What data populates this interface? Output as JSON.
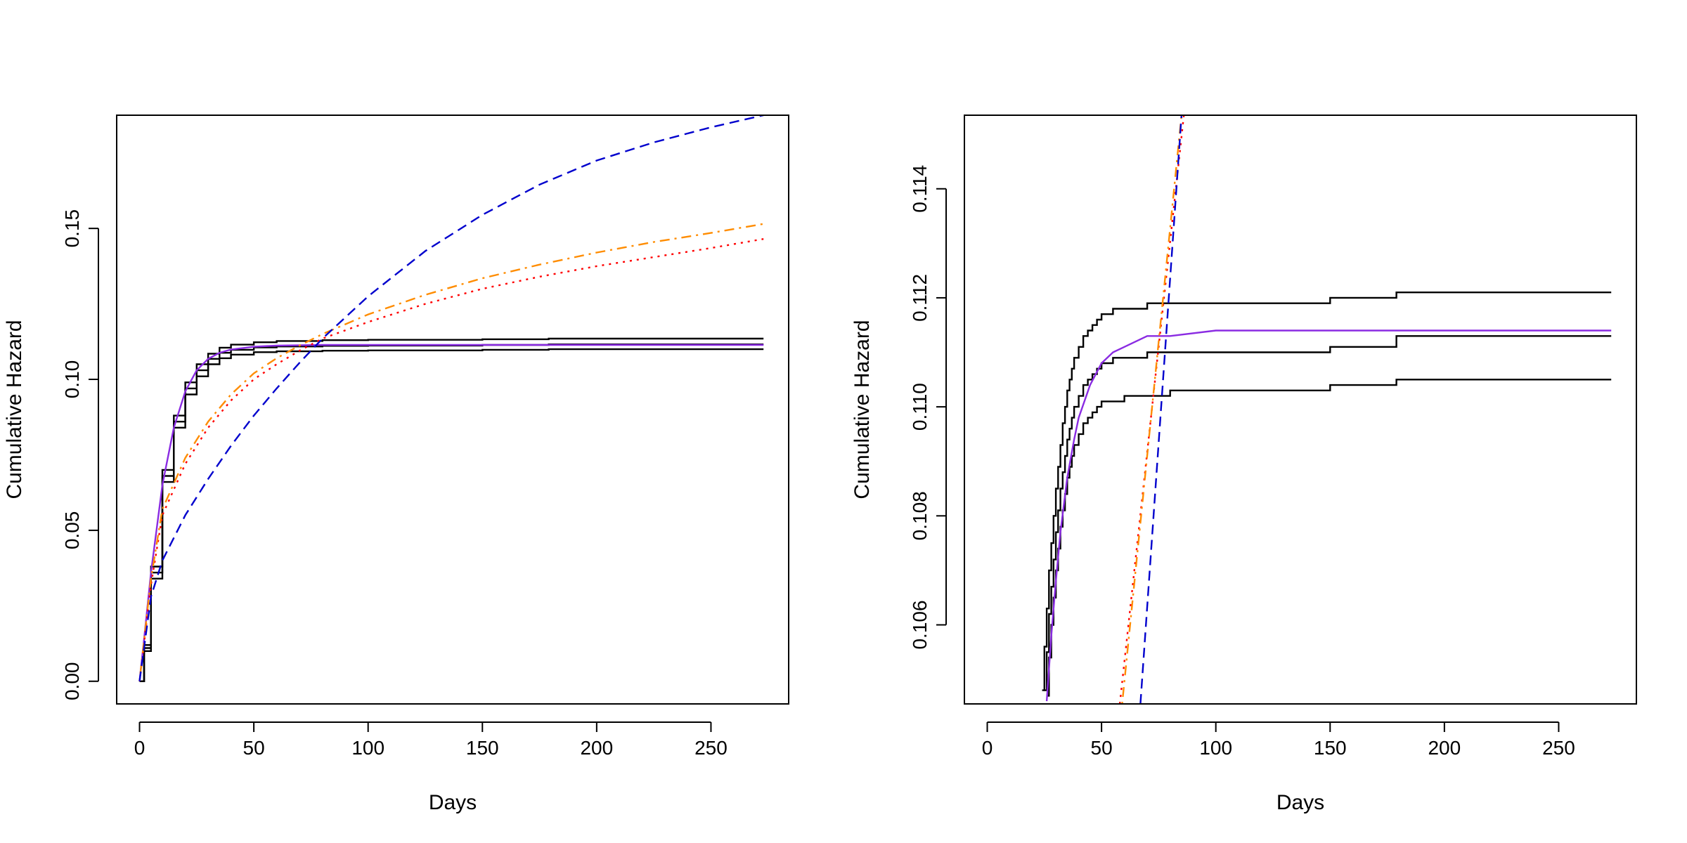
{
  "chart_data": [
    {
      "type": "line",
      "xlabel": "Days",
      "ylabel": "Cumulative Hazard",
      "xlim": [
        -10,
        284
      ],
      "ylim": [
        -0.0075,
        0.1875
      ],
      "x_ticks": [
        0,
        50,
        100,
        150,
        200,
        250
      ],
      "x_tick_labels": [
        "0",
        "50",
        "100",
        "150",
        "200",
        "250"
      ],
      "y_ticks": [
        0.0,
        0.05,
        0.1,
        0.15
      ],
      "y_tick_labels": [
        "0.00",
        "0.05",
        "0.10",
        "0.15"
      ],
      "grid": false,
      "series": [
        {
          "style": "step",
          "color": "#000000",
          "dash": "solid",
          "x": [
            0,
            2,
            5,
            10,
            15,
            20,
            25,
            30,
            35,
            40,
            50,
            60,
            80,
            100,
            150,
            178,
            179,
            273
          ],
          "y": [
            0.0,
            0.012,
            0.038,
            0.07,
            0.088,
            0.099,
            0.105,
            0.1085,
            0.1105,
            0.1115,
            0.1123,
            0.1127,
            0.113,
            0.1131,
            0.1133,
            0.1133,
            0.1135,
            0.1135
          ]
        },
        {
          "style": "step",
          "color": "#000000",
          "dash": "solid",
          "x": [
            0,
            2,
            5,
            10,
            15,
            20,
            25,
            30,
            35,
            40,
            50,
            60,
            80,
            100,
            150,
            178,
            179,
            273
          ],
          "y": [
            0.0,
            0.011,
            0.036,
            0.068,
            0.086,
            0.097,
            0.103,
            0.1068,
            0.1088,
            0.1098,
            0.1106,
            0.1109,
            0.1111,
            0.1112,
            0.1114,
            0.1114,
            0.1116,
            0.1116
          ]
        },
        {
          "style": "step",
          "color": "#000000",
          "dash": "solid",
          "x": [
            0,
            2,
            5,
            10,
            15,
            20,
            25,
            30,
            35,
            40,
            50,
            60,
            80,
            100,
            150,
            178,
            179,
            273
          ],
          "y": [
            0.0,
            0.01,
            0.034,
            0.066,
            0.084,
            0.095,
            0.101,
            0.105,
            0.107,
            0.1082,
            0.109,
            0.1093,
            0.1095,
            0.1096,
            0.1098,
            0.1098,
            0.11,
            0.11
          ]
        },
        {
          "style": "line",
          "color": "#8a2be2",
          "dash": "solid",
          "x": [
            0,
            2,
            5,
            10,
            15,
            20,
            25,
            30,
            35,
            40,
            50,
            60,
            80,
            100,
            150,
            200,
            273
          ],
          "y": [
            0.0,
            0.014,
            0.036,
            0.065,
            0.084,
            0.096,
            0.103,
            0.1068,
            0.1088,
            0.1099,
            0.1108,
            0.1112,
            0.1114,
            0.1114,
            0.1114,
            0.1114,
            0.1114
          ]
        },
        {
          "style": "line",
          "color": "#ff0000",
          "dash": "dotted",
          "x": [
            0,
            5,
            10,
            20,
            30,
            40,
            50,
            60,
            70,
            80,
            100,
            125,
            150,
            175,
            200,
            225,
            250,
            273
          ],
          "y": [
            0.0,
            0.032,
            0.055,
            0.072,
            0.084,
            0.093,
            0.1,
            0.105,
            0.1095,
            0.1135,
            0.119,
            0.125,
            0.13,
            0.134,
            0.1375,
            0.1405,
            0.1435,
            0.1465
          ]
        },
        {
          "style": "line",
          "color": "#ff8c00",
          "dash": "dashdot",
          "x": [
            0,
            5,
            10,
            20,
            30,
            40,
            50,
            60,
            70,
            80,
            100,
            125,
            150,
            175,
            200,
            225,
            250,
            273
          ],
          "y": [
            0.0,
            0.034,
            0.057,
            0.074,
            0.086,
            0.095,
            0.102,
            0.107,
            0.1112,
            0.115,
            0.1215,
            0.128,
            0.1335,
            0.138,
            0.142,
            0.1455,
            0.1485,
            0.1515
          ]
        },
        {
          "style": "line",
          "color": "#0000cd",
          "dash": "dashed",
          "x": [
            0,
            5,
            10,
            20,
            30,
            40,
            50,
            60,
            70,
            80,
            100,
            125,
            150,
            175,
            200,
            225,
            250,
            273
          ],
          "y": [
            0.0,
            0.028,
            0.04,
            0.055,
            0.067,
            0.078,
            0.088,
            0.097,
            0.1055,
            0.1135,
            0.1275,
            0.1425,
            0.1545,
            0.1645,
            0.1725,
            0.1785,
            0.1835,
            0.1875
          ]
        }
      ]
    },
    {
      "type": "line",
      "xlabel": "Days",
      "ylabel": "Cumulative Hazard",
      "xlim": [
        -10,
        284
      ],
      "ylim": [
        0.10455,
        0.11535
      ],
      "x_ticks": [
        0,
        50,
        100,
        150,
        200,
        250
      ],
      "x_tick_labels": [
        "0",
        "50",
        "100",
        "150",
        "200",
        "250"
      ],
      "y_ticks": [
        0.106,
        0.108,
        0.11,
        0.112,
        0.114
      ],
      "y_tick_labels": [
        "0.106",
        "0.108",
        "0.110",
        "0.112",
        "0.114"
      ],
      "grid": false,
      "series": [
        {
          "style": "step",
          "color": "#000000",
          "dash": "solid",
          "x": [
            24,
            25,
            26,
            27,
            28,
            29,
            30,
            31,
            32,
            33,
            34,
            35,
            36,
            37,
            38,
            40,
            42,
            44,
            46,
            48,
            50,
            55,
            60,
            70,
            80,
            100,
            120,
            150,
            178,
            179,
            273
          ],
          "y": [
            0.1048,
            0.1056,
            0.1063,
            0.107,
            0.1075,
            0.108,
            0.1085,
            0.1089,
            0.1093,
            0.1097,
            0.11,
            0.1103,
            0.1105,
            0.1107,
            0.1109,
            0.1111,
            0.1113,
            0.1114,
            0.1115,
            0.1116,
            0.1117,
            0.1118,
            0.1118,
            0.1119,
            0.1119,
            0.1119,
            0.1119,
            0.112,
            0.112,
            0.1121,
            0.1121
          ]
        },
        {
          "style": "step",
          "color": "#000000",
          "dash": "solid",
          "x": [
            25,
            26,
            27,
            28,
            29,
            30,
            31,
            32,
            33,
            34,
            35,
            36,
            37,
            38,
            40,
            42,
            44,
            46,
            48,
            50,
            55,
            60,
            70,
            80,
            100,
            120,
            150,
            178,
            179,
            273
          ],
          "y": [
            0.1048,
            0.1055,
            0.1062,
            0.1067,
            0.1072,
            0.1077,
            0.1081,
            0.1085,
            0.1088,
            0.1091,
            0.1094,
            0.1096,
            0.1098,
            0.11,
            0.1102,
            0.1104,
            0.1105,
            0.1106,
            0.1107,
            0.1108,
            0.1109,
            0.1109,
            0.111,
            0.111,
            0.111,
            0.111,
            0.1111,
            0.1111,
            0.1113,
            0.1113
          ]
        },
        {
          "style": "step",
          "color": "#000000",
          "dash": "solid",
          "x": [
            26,
            27,
            28,
            29,
            30,
            31,
            32,
            33,
            34,
            35,
            36,
            37,
            38,
            40,
            42,
            44,
            46,
            48,
            50,
            55,
            60,
            70,
            80,
            100,
            120,
            150,
            178,
            179,
            273
          ],
          "y": [
            0.1047,
            0.1054,
            0.106,
            0.1065,
            0.107,
            0.1074,
            0.1078,
            0.1081,
            0.1084,
            0.1087,
            0.1089,
            0.1091,
            0.1093,
            0.1095,
            0.1097,
            0.1098,
            0.1099,
            0.11,
            0.1101,
            0.1101,
            0.1102,
            0.1102,
            0.1103,
            0.1103,
            0.1103,
            0.1104,
            0.1104,
            0.1105,
            0.1105
          ]
        },
        {
          "style": "line",
          "color": "#8a2be2",
          "dash": "solid",
          "x": [
            26,
            28,
            30,
            32,
            35,
            38,
            40,
            45,
            50,
            55,
            60,
            70,
            80,
            100,
            150,
            200,
            273
          ],
          "y": [
            0.1046,
            0.1058,
            0.1068,
            0.1077,
            0.1087,
            0.1094,
            0.1098,
            0.1104,
            0.1108,
            0.111,
            0.1111,
            0.1113,
            0.1113,
            0.1114,
            0.1114,
            0.1114,
            0.1114
          ]
        },
        {
          "style": "line",
          "color": "#ff0000",
          "dash": "dotted",
          "x": [
            58,
            86
          ],
          "y": [
            0.10455,
            0.11535
          ]
        },
        {
          "style": "line",
          "color": "#ff8c00",
          "dash": "dashdot",
          "x": [
            59,
            85
          ],
          "y": [
            0.10455,
            0.11535
          ]
        },
        {
          "style": "line",
          "color": "#0000cd",
          "dash": "dashed",
          "x": [
            67,
            85
          ],
          "y": [
            0.10455,
            0.11535
          ]
        }
      ]
    }
  ]
}
